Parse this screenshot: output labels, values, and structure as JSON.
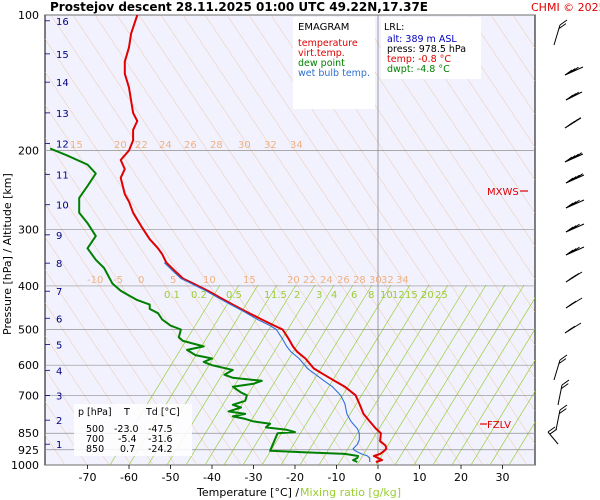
{
  "header": {
    "title": "Prostejov  descent  28.11.2025 01:00 UTC  49.22N,17.37E",
    "copyright": "CHMI © 2025"
  },
  "colors": {
    "plot_bg": "#f2f2ff",
    "temperature": "#e00000",
    "dew_point": "#008000",
    "wet_bulb": "#3070d0",
    "mixing_ratio": "#9acd32",
    "dry_adiabat": "#f0b080",
    "pressure_grid": "#909090",
    "altitude_label": "#000080",
    "marker": "#e00000"
  },
  "legend": {
    "title": "EMAGRAM",
    "items": [
      {
        "label": "temperature",
        "color": "#e00000"
      },
      {
        "label": "virt.temp.",
        "color": "#e00000"
      },
      {
        "label": "dew point",
        "color": "#008000"
      },
      {
        "label": "wet bulb temp.",
        "color": "#3070d0"
      }
    ]
  },
  "lrl": {
    "title": "LRL:",
    "alt": "alt: 389 m ASL",
    "press": "press: 978.5 hPa",
    "temp": "temp: -0.8 °C",
    "dwpt": "dwpt: -4.8 °C"
  },
  "table": {
    "headers": [
      "p [hPa]",
      "T",
      "Td [°C]"
    ],
    "rows": [
      [
        "500",
        "-23.0",
        "-47.5"
      ],
      [
        "700",
        "-5.4",
        "-31.6"
      ],
      [
        "850",
        "0.7",
        "-24.2"
      ]
    ]
  },
  "markers": {
    "mxws": "MXWS",
    "fzlv": "FZLV"
  },
  "axes": {
    "xlabel": "Temperature [°C]  /",
    "xlabel_mixing": "Mixing ratio [g/kg]",
    "ylabel": "Pressure [hPa]  /  Altitude [km]",
    "x_ticks": [
      "-70",
      "-60",
      "-50",
      "-40",
      "-30",
      "-20",
      "-10",
      "0",
      "10",
      "20",
      "30"
    ],
    "y_ticks": [
      "100",
      "200",
      "300",
      "400",
      "500",
      "600",
      "700",
      "850",
      "925",
      "1000"
    ],
    "altitude_ticks": [
      "16",
      "15",
      "14",
      "13",
      "12",
      "11",
      "10",
      "9",
      "8",
      "7",
      "6",
      "5",
      "4",
      "3",
      "2",
      "1"
    ]
  },
  "isoline_labels": {
    "row_200": [
      "15",
      "20",
      "22",
      "24",
      "26",
      "28",
      "30",
      "32",
      "34"
    ],
    "row_400": [
      "-10",
      "-5",
      "0",
      "5",
      "10",
      "15",
      "20",
      "22",
      "24",
      "26",
      "28",
      "30",
      "32",
      "34"
    ],
    "mixing_ratio": [
      "0.1",
      "0.2",
      "0.5",
      "1",
      "1.5",
      "2",
      "3",
      "4",
      "6",
      "8",
      "10",
      "12",
      "15",
      "20",
      "25"
    ]
  },
  "chart_data": {
    "type": "line",
    "title": "Prostejov  descent  28.11.2025 01:00 UTC  49.22N,17.37E",
    "xlabel": "Temperature [°C]  /  Mixing ratio [g/kg]",
    "ylabel": "Pressure [hPa]  /  Altitude [km]",
    "xlim": [
      -80,
      40
    ],
    "ylim": [
      1000,
      100
    ],
    "y_scale": "log",
    "series": [
      {
        "name": "temperature",
        "color": "#e00000",
        "points": [
          [
            -0.5,
            985
          ],
          [
            1,
            975
          ],
          [
            0,
            965
          ],
          [
            -1,
            955
          ],
          [
            0.5,
            945
          ],
          [
            1.5,
            930
          ],
          [
            2,
            920
          ],
          [
            1.8,
            905
          ],
          [
            0.5,
            885
          ],
          [
            0.7,
            850
          ],
          [
            -0.5,
            830
          ],
          [
            -2,
            800
          ],
          [
            -3.5,
            770
          ],
          [
            -4.5,
            730
          ],
          [
            -5.4,
            700
          ],
          [
            -8,
            670
          ],
          [
            -10.5,
            650
          ],
          [
            -13,
            630
          ],
          [
            -15.5,
            610
          ],
          [
            -17.5,
            580
          ],
          [
            -19.5,
            560
          ],
          [
            -20.5,
            545
          ],
          [
            -21.5,
            525
          ],
          [
            -23,
            500
          ],
          [
            -25,
            490
          ],
          [
            -28,
            475
          ],
          [
            -32,
            455
          ],
          [
            -35,
            440
          ],
          [
            -38,
            425
          ],
          [
            -41,
            410
          ],
          [
            -44.5,
            395
          ],
          [
            -47,
            385
          ],
          [
            -49,
            370
          ],
          [
            -51,
            355
          ],
          [
            -52,
            340
          ],
          [
            -53,
            330
          ],
          [
            -55,
            315
          ],
          [
            -56,
            305
          ],
          [
            -57,
            295
          ],
          [
            -58,
            285
          ],
          [
            -59,
            275
          ],
          [
            -60,
            260
          ],
          [
            -61,
            250
          ],
          [
            -61.5,
            240
          ],
          [
            -62,
            230
          ],
          [
            -61,
            220
          ],
          [
            -62,
            210
          ],
          [
            -60,
            200
          ],
          [
            -59,
            190
          ],
          [
            -59,
            180
          ],
          [
            -58,
            172
          ],
          [
            -59,
            165
          ],
          [
            -59.5,
            155
          ],
          [
            -60,
            145
          ],
          [
            -61,
            135
          ],
          [
            -61,
            127
          ],
          [
            -60,
            118
          ],
          [
            -59.5,
            110
          ],
          [
            -58,
            100
          ]
        ]
      },
      {
        "name": "dew point",
        "color": "#008000",
        "points": [
          [
            -5,
            985
          ],
          [
            -6,
            975
          ],
          [
            -5,
            965
          ],
          [
            -4.8,
            955
          ],
          [
            -8,
            945
          ],
          [
            -18,
            937
          ],
          [
            -26,
            930
          ],
          [
            -24.2,
            850
          ],
          [
            -20,
            845
          ],
          [
            -22,
            835
          ],
          [
            -27,
            825
          ],
          [
            -26,
            810
          ],
          [
            -30,
            800
          ],
          [
            -32,
            790
          ],
          [
            -35,
            780
          ],
          [
            -32,
            770
          ],
          [
            -36,
            760
          ],
          [
            -33,
            745
          ],
          [
            -35,
            735
          ],
          [
            -32,
            720
          ],
          [
            -31.6,
            700
          ],
          [
            -33,
            690
          ],
          [
            -35,
            670
          ],
          [
            -30,
            660
          ],
          [
            -28,
            650
          ],
          [
            -35,
            640
          ],
          [
            -37,
            630
          ],
          [
            -35,
            615
          ],
          [
            -40,
            600
          ],
          [
            -42,
            590
          ],
          [
            -40,
            580
          ],
          [
            -44,
            570
          ],
          [
            -46,
            555
          ],
          [
            -42,
            545
          ],
          [
            -47,
            530
          ],
          [
            -48,
            520
          ],
          [
            -47.5,
            500
          ],
          [
            -50,
            490
          ],
          [
            -52,
            475
          ],
          [
            -53,
            460
          ],
          [
            -55,
            450
          ],
          [
            -55,
            440
          ],
          [
            -58,
            430
          ],
          [
            -60,
            420
          ],
          [
            -62,
            410
          ],
          [
            -64,
            395
          ],
          [
            -65,
            380
          ],
          [
            -66,
            365
          ],
          [
            -68,
            350
          ],
          [
            -70,
            330
          ],
          [
            -68,
            310
          ],
          [
            -70,
            290
          ],
          [
            -72,
            275
          ],
          [
            -72,
            255
          ],
          [
            -70,
            240
          ],
          [
            -68,
            225
          ],
          [
            -70,
            215
          ],
          [
            -75,
            205
          ],
          [
            -79,
            198
          ]
        ]
      },
      {
        "name": "wet bulb temp.",
        "color": "#3070d0",
        "points": [
          [
            -2,
            985
          ],
          [
            -2,
            975
          ],
          [
            -2,
            965
          ],
          [
            -2.5,
            955
          ],
          [
            -4,
            945
          ],
          [
            -5.5,
            930
          ],
          [
            -6,
            920
          ],
          [
            -5,
            900
          ],
          [
            -4.5,
            880
          ],
          [
            -4.5,
            850
          ],
          [
            -5,
            830
          ],
          [
            -6.5,
            800
          ],
          [
            -7.5,
            770
          ],
          [
            -8,
            730
          ],
          [
            -9,
            700
          ],
          [
            -11,
            670
          ],
          [
            -13,
            650
          ],
          [
            -15,
            630
          ],
          [
            -17,
            610
          ],
          [
            -19,
            580
          ],
          [
            -21,
            560
          ],
          [
            -22,
            545
          ],
          [
            -23,
            525
          ],
          [
            -24.5,
            500
          ],
          [
            -26,
            490
          ],
          [
            -29,
            475
          ],
          [
            -32.5,
            455
          ],
          [
            -35.5,
            440
          ],
          [
            -38.5,
            425
          ],
          [
            -41.5,
            410
          ],
          [
            -45,
            395
          ],
          [
            -47.5,
            385
          ],
          [
            -49.5,
            370
          ],
          [
            -51.5,
            355
          ]
        ]
      }
    ],
    "grid": true
  }
}
